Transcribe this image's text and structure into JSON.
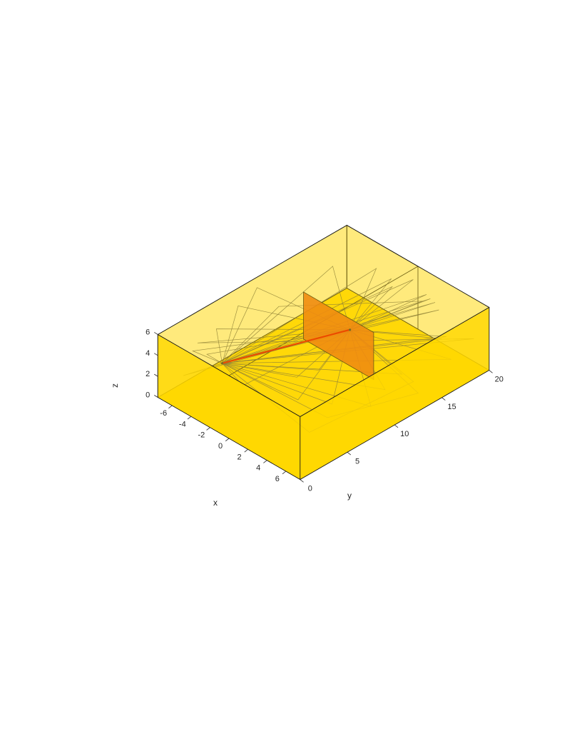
{
  "chart_data": {
    "type": "3d-line",
    "title": "",
    "xlabel": "x",
    "ylabel": "y",
    "zlabel": "z",
    "xlim": [
      -7.5,
      7.5
    ],
    "ylim": [
      0,
      20
    ],
    "zlim": [
      0,
      6
    ],
    "x_ticks": [
      {
        "value": -6,
        "label": "-6"
      },
      {
        "value": -4,
        "label": "-4"
      },
      {
        "value": -2,
        "label": "-2"
      },
      {
        "value": 0,
        "label": "0"
      },
      {
        "value": 2,
        "label": "2"
      },
      {
        "value": 4,
        "label": "4"
      },
      {
        "value": 6,
        "label": "6"
      }
    ],
    "y_ticks": [
      {
        "value": 0,
        "label": "0"
      },
      {
        "value": 5,
        "label": "5"
      },
      {
        "value": 10,
        "label": "10"
      },
      {
        "value": 15,
        "label": "15"
      },
      {
        "value": 20,
        "label": "20"
      }
    ],
    "z_ticks": [
      {
        "value": 0,
        "label": "0"
      },
      {
        "value": 2,
        "label": "2"
      },
      {
        "value": 4,
        "label": "4"
      },
      {
        "value": 6,
        "label": "6"
      }
    ],
    "room_box": {
      "x": [
        -7.5,
        7.5
      ],
      "y": [
        0,
        20
      ],
      "z": [
        0,
        6
      ],
      "color": "#FFD700",
      "opacity": 0.55
    },
    "inner_region": {
      "x": [
        -7.5,
        0
      ],
      "y": [
        0,
        20
      ],
      "z": [
        0,
        6
      ]
    },
    "obstacle_plate": {
      "x": [
        -3.7,
        3.7
      ],
      "y": [
        11.6,
        11.6
      ],
      "z": [
        1.5,
        6.0
      ],
      "color": "#E8641A"
    },
    "source_point": [
      -5.3,
      4.6,
      2.0
    ],
    "receiver_point": [
      0.1,
      12.7,
      3.8
    ],
    "direct_path": {
      "from": [
        -5.3,
        4.6,
        2.0
      ],
      "to": [
        0.1,
        12.7,
        3.8
      ],
      "color": "#E00000"
    },
    "reflected_paths": [
      {
        "color": "#555555",
        "points": [
          [
            -5.3,
            4.6,
            2.0
          ],
          [
            2.5,
            19.7,
            3.3
          ],
          [
            0.1,
            12.7,
            3.8
          ]
        ]
      },
      {
        "color": "#555555",
        "points": [
          [
            -5.3,
            4.6,
            2.0
          ],
          [
            2.0,
            19.8,
            3.7
          ],
          [
            0.1,
            12.7,
            3.8
          ]
        ]
      },
      {
        "color": "#555555",
        "points": [
          [
            -5.3,
            4.6,
            2.0
          ],
          [
            1.6,
            19.7,
            3.9
          ],
          [
            0.1,
            12.7,
            3.8
          ]
        ]
      },
      {
        "color": "#555555",
        "points": [
          [
            -5.3,
            4.6,
            2.0
          ],
          [
            1.3,
            19.6,
            4.2
          ],
          [
            0.1,
            12.7,
            3.8
          ]
        ]
      },
      {
        "color": "#555555",
        "points": [
          [
            -5.3,
            4.6,
            2.0
          ],
          [
            -7.5,
            8.5,
            4.3
          ],
          [
            0.1,
            12.7,
            3.8
          ]
        ]
      },
      {
        "color": "#555555",
        "points": [
          [
            -5.3,
            4.6,
            2.0
          ],
          [
            -7.5,
            6.2,
            3.3
          ],
          [
            0.1,
            12.7,
            3.8
          ]
        ]
      },
      {
        "color": "#555555",
        "points": [
          [
            -5.3,
            4.6,
            2.0
          ],
          [
            -7.5,
            3.7,
            2.5
          ],
          [
            0.1,
            12.7,
            3.8
          ]
        ]
      },
      {
        "color": "#555555",
        "points": [
          [
            -5.3,
            4.6,
            2.0
          ],
          [
            6.0,
            9.0,
            1.5
          ],
          [
            0.1,
            12.7,
            3.8
          ]
        ]
      },
      {
        "color": "#555555",
        "points": [
          [
            -5.3,
            4.6,
            2.0
          ],
          [
            5.5,
            11.0,
            1.8
          ],
          [
            0.1,
            12.7,
            3.8
          ]
        ]
      },
      {
        "color": "#555555",
        "points": [
          [
            -5.3,
            4.6,
            2.0
          ],
          [
            4.8,
            13.5,
            1.6
          ],
          [
            0.1,
            12.7,
            3.8
          ]
        ]
      },
      {
        "color": "#555555",
        "points": [
          [
            -5.3,
            4.6,
            2.0
          ],
          [
            7.0,
            16.5,
            2.6
          ],
          [
            0.1,
            12.7,
            3.8
          ]
        ]
      },
      {
        "color": "#555555",
        "points": [
          [
            -5.3,
            4.6,
            2.0
          ],
          [
            5.0,
            17.5,
            3.0
          ],
          [
            0.1,
            12.7,
            3.8
          ]
        ]
      },
      {
        "color": "#555555",
        "points": [
          [
            -5.3,
            4.6,
            2.0
          ],
          [
            -2.0,
            9.2,
            0.0
          ],
          [
            0.1,
            12.7,
            3.8
          ]
        ]
      },
      {
        "color": "#555555",
        "points": [
          [
            -5.3,
            4.6,
            2.0
          ],
          [
            -1.5,
            11.0,
            0.0
          ],
          [
            0.1,
            12.7,
            3.8
          ]
        ]
      },
      {
        "color": "#555555",
        "points": [
          [
            -5.3,
            4.6,
            2.0
          ],
          [
            2.5,
            8.4,
            0.2
          ],
          [
            0.1,
            12.7,
            3.8
          ]
        ]
      },
      {
        "color": "#555555",
        "points": [
          [
            -5.3,
            4.6,
            2.0
          ],
          [
            0.5,
            6.8,
            0.4
          ],
          [
            0.1,
            12.7,
            3.8
          ]
        ]
      },
      {
        "color": "#555555",
        "points": [
          [
            -5.3,
            4.6,
            2.0
          ],
          [
            -3.5,
            5.0,
            0.6
          ],
          [
            0.1,
            12.7,
            3.8
          ]
        ]
      },
      {
        "color": "#555555",
        "points": [
          [
            -5.3,
            4.6,
            2.0
          ],
          [
            -7.5,
            10.5,
            5.0
          ],
          [
            0.1,
            12.7,
            3.8
          ]
        ]
      },
      {
        "color": "#555555",
        "points": [
          [
            -5.3,
            4.6,
            2.0
          ],
          [
            -4.5,
            15.5,
            6.0
          ],
          [
            0.1,
            12.7,
            3.8
          ]
        ]
      },
      {
        "color": "#555555",
        "points": [
          [
            -5.3,
            4.6,
            2.0
          ],
          [
            -2.0,
            17.6,
            6.0
          ],
          [
            0.1,
            12.7,
            3.8
          ]
        ]
      },
      {
        "color": "#555555",
        "points": [
          [
            -5.3,
            4.6,
            2.0
          ],
          [
            0.5,
            16.8,
            6.0
          ],
          [
            0.1,
            12.7,
            3.8
          ]
        ]
      },
      {
        "color": "#555555",
        "points": [
          [
            -5.3,
            4.6,
            2.0
          ],
          [
            -6.8,
            2.0,
            1.4
          ],
          [
            0.1,
            12.7,
            3.8
          ]
        ]
      },
      {
        "color": "#555555",
        "points": [
          [
            -5.3,
            4.6,
            2.0
          ],
          [
            -7.5,
            5.2,
            1.4
          ],
          [
            0.1,
            12.7,
            3.8
          ]
        ]
      },
      {
        "color": "#555555",
        "points": [
          [
            -5.3,
            4.6,
            2.0
          ],
          [
            4.0,
            19.0,
            1.9
          ],
          [
            0.1,
            12.7,
            3.8
          ]
        ]
      },
      {
        "color": "#555555",
        "points": [
          [
            -5.3,
            4.6,
            2.0
          ],
          [
            6.5,
            19.4,
            2.8
          ],
          [
            -7.5,
            4.2,
            3.0
          ],
          [
            0.1,
            12.7,
            3.8
          ]
        ]
      },
      {
        "color": "#555555",
        "points": [
          [
            -5.3,
            4.6,
            2.0
          ],
          [
            3.2,
            7.2,
            -0.1
          ],
          [
            7.0,
            13.0,
            1.2
          ],
          [
            0.1,
            12.7,
            3.8
          ]
        ]
      },
      {
        "color": "#555555",
        "points": [
          [
            -5.3,
            4.6,
            2.0
          ],
          [
            -7.5,
            12.8,
            2.0
          ],
          [
            2.0,
            18.5,
            4.5
          ],
          [
            0.1,
            12.7,
            3.8
          ]
        ]
      },
      {
        "color": "#555555",
        "points": [
          [
            -5.3,
            4.6,
            2.0
          ],
          [
            0.0,
            19.5,
            5.0
          ],
          [
            0.1,
            12.7,
            3.8
          ]
        ]
      },
      {
        "color": "#555555",
        "points": [
          [
            -5.3,
            4.6,
            2.0
          ],
          [
            -1.8,
            19.0,
            4.4
          ],
          [
            0.1,
            12.7,
            3.8
          ]
        ]
      },
      {
        "color": "#555555",
        "points": [
          [
            -5.3,
            4.6,
            2.0
          ],
          [
            3.5,
            5.0,
            -0.2
          ],
          [
            5.5,
            14.0,
            1.0
          ],
          [
            0.1,
            12.7,
            3.8
          ]
        ]
      }
    ]
  }
}
